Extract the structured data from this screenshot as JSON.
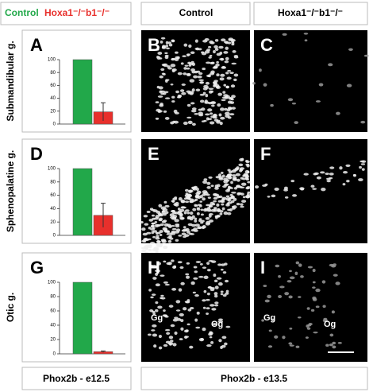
{
  "headers": [
    "Control",
    "Hoxa1⁻/⁻b1⁻/⁻"
  ],
  "panels": [
    "A",
    "B",
    "C",
    "D",
    "E",
    "F",
    "G",
    "H",
    "I"
  ],
  "image_labels": [
    "Gg",
    "Og",
    "Gg",
    "Og"
  ],
  "footer": [
    "Phox2b - e12.5",
    "Phox2b - e13.5"
  ],
  "chart_data": [
    {
      "type": "bar",
      "title": "Submandibular g.",
      "series": [
        {
          "name": "Control",
          "color": "#22a84a",
          "values": [
            100
          ]
        },
        {
          "name": "Hoxa1⁻/⁻b1⁻/⁻",
          "color": "#e8302c",
          "values": [
            19
          ],
          "errors": [
            14
          ]
        }
      ],
      "ylim": [
        0,
        100
      ],
      "yticks": [
        0,
        20,
        40,
        60,
        80,
        100
      ]
    },
    {
      "type": "bar",
      "title": "Sphenopalatine g.",
      "series": [
        {
          "name": "Control",
          "color": "#22a84a",
          "values": [
            100
          ]
        },
        {
          "name": "Hoxa1⁻/⁻b1⁻/⁻",
          "color": "#e8302c",
          "values": [
            30
          ],
          "errors": [
            18
          ]
        }
      ],
      "ylim": [
        0,
        100
      ],
      "yticks": [
        0,
        20,
        40,
        60,
        80,
        100
      ]
    },
    {
      "type": "bar",
      "title": "Otic g.",
      "series": [
        {
          "name": "Control",
          "color": "#22a84a",
          "values": [
            100
          ]
        },
        {
          "name": "Hoxa1⁻/⁻b1⁻/⁻",
          "color": "#e8302c",
          "values": [
            3
          ],
          "errors": [
            1
          ]
        }
      ],
      "ylim": [
        0,
        100
      ],
      "yticks": [
        0,
        20,
        40,
        60,
        80,
        100
      ]
    }
  ]
}
